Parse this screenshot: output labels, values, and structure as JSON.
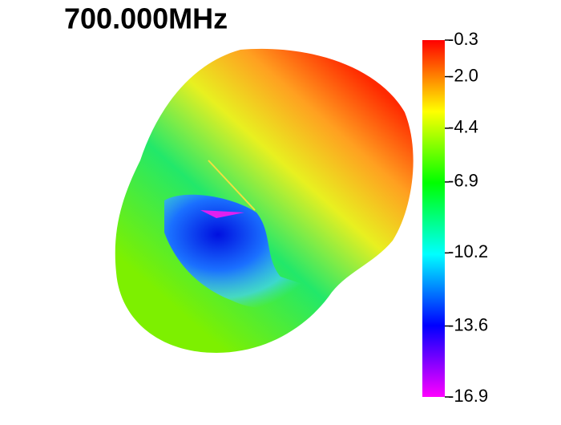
{
  "chart_data": {
    "type": "colorbar",
    "title": "700.000MHz",
    "colormap": [
      "#ff0000",
      "#ffff00",
      "#00ff00",
      "#00ffff",
      "#0000ff",
      "#ff00ff"
    ],
    "ylim": [
      -16.9,
      -0.3
    ],
    "yticks": [
      -0.3,
      {
        "value": -2,
        "label": "-2.0"
      },
      -4.4,
      -6.9,
      -10.2,
      -13.6,
      -16.9
    ]
  }
}
